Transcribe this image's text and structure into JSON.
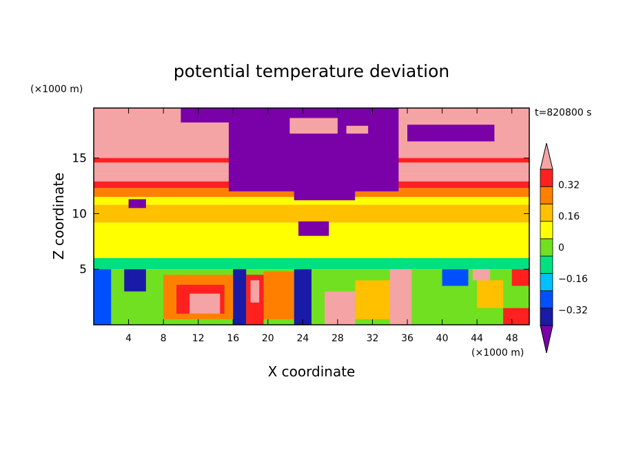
{
  "chart_data": {
    "type": "heatmap",
    "title": "potential temperature deviation",
    "xlabel": "X coordinate",
    "ylabel": "Z coordinate",
    "x_unit": "(×1000 m)",
    "y_unit": "(×1000 m)",
    "time_label": "t=820800 s",
    "xlim": [
      0,
      50
    ],
    "ylim": [
      0,
      19.5
    ],
    "x_ticks": [
      "4",
      "8",
      "12",
      "16",
      "20",
      "24",
      "28",
      "32",
      "36",
      "40",
      "44",
      "48"
    ],
    "x_tick_values": [
      4,
      8,
      12,
      16,
      20,
      24,
      28,
      32,
      36,
      40,
      44,
      48
    ],
    "y_ticks": [
      "5",
      "10",
      "15"
    ],
    "y_tick_values": [
      5,
      10,
      15
    ],
    "colorbar": {
      "levels": [
        -0.4,
        -0.32,
        -0.24,
        -0.16,
        -0.08,
        0,
        0.08,
        0.16,
        0.24,
        0.32,
        0.4
      ],
      "labels": [
        "0.32",
        "0.16",
        "0",
        "−0.16",
        "−0.32"
      ],
      "label_values": [
        0.32,
        0.16,
        0,
        -0.16,
        -0.32
      ],
      "colors": [
        "#7a00a8",
        "#1a1aa8",
        "#0050ff",
        "#00c0ff",
        "#00e080",
        "#70e020",
        "#ffff00",
        "#ffc000",
        "#ff8000",
        "#ff2020",
        "#f4a4a4"
      ]
    },
    "regions": [
      {
        "level": 0.02,
        "x0": 0,
        "x1": 50,
        "y0": 5,
        "y1": 9.2
      },
      {
        "level": 0.1,
        "x0": 0,
        "x1": 50,
        "y0": 9.2,
        "y1": 10.8
      },
      {
        "level": 0.05,
        "x0": 0,
        "x1": 50,
        "y0": 8.2,
        "y1": 8.8
      },
      {
        "level": 0.06,
        "x0": 0,
        "x1": 50,
        "y0": 10.8,
        "y1": 11.5
      },
      {
        "level": 0.18,
        "x0": 0,
        "x1": 50,
        "y0": 11.5,
        "y1": 12.3
      },
      {
        "level": 0.24,
        "x0": 0,
        "x1": 50,
        "y0": 12.3,
        "y1": 12.9
      },
      {
        "level": 0.32,
        "x0": 0,
        "x1": 50,
        "y0": 12.9,
        "y1": 13.6
      },
      {
        "level": 0.44,
        "x0": 0,
        "x1": 50,
        "y0": 13.6,
        "y1": 19.5
      },
      {
        "level": 0.28,
        "x0": 0,
        "x1": 50,
        "y0": 14.6,
        "y1": 15.0
      },
      {
        "level": -0.44,
        "x0": 15.5,
        "x1": 35,
        "y0": 12.0,
        "y1": 19.5
      },
      {
        "level": -0.44,
        "x0": 23,
        "x1": 30,
        "y0": 11.2,
        "y1": 12.5
      },
      {
        "level": -0.44,
        "x0": 10,
        "x1": 16,
        "y0": 18.2,
        "y1": 19.5
      },
      {
        "level": -0.44,
        "x0": 36,
        "x1": 46,
        "y0": 16.5,
        "y1": 18.0
      },
      {
        "level": -0.44,
        "x0": 4,
        "x1": 6,
        "y0": 10.5,
        "y1": 11.3
      },
      {
        "level": -0.44,
        "x0": 23.5,
        "x1": 27,
        "y0": 8.0,
        "y1": 9.3
      },
      {
        "level": 0.44,
        "x0": 22.5,
        "x1": 28,
        "y0": 17.2,
        "y1": 18.6
      },
      {
        "level": 0.44,
        "x0": 29,
        "x1": 31.5,
        "y0": 17.2,
        "y1": 17.9
      },
      {
        "level": -0.1,
        "x0": 0,
        "x1": 50,
        "y0": 5.0,
        "y1": 6.0
      },
      {
        "level": -0.02,
        "x0": 0,
        "x1": 50,
        "y0": 0,
        "y1": 5.0
      },
      {
        "level": -0.3,
        "x0": 0,
        "x1": 2,
        "y0": 0,
        "y1": 5.0
      },
      {
        "level": -0.36,
        "x0": 3.5,
        "x1": 6,
        "y0": 3.0,
        "y1": 5.0
      },
      {
        "level": 0.2,
        "x0": 8,
        "x1": 16,
        "y0": 0.5,
        "y1": 4.5
      },
      {
        "level": 0.3,
        "x0": 9.5,
        "x1": 15,
        "y0": 1.0,
        "y1": 3.6
      },
      {
        "level": 0.44,
        "x0": 11,
        "x1": 14.5,
        "y0": 1.0,
        "y1": 2.8
      },
      {
        "level": -0.38,
        "x0": 16,
        "x1": 17.5,
        "y0": 0,
        "y1": 5.0
      },
      {
        "level": 0.3,
        "x0": 17.5,
        "x1": 19.5,
        "y0": 0,
        "y1": 4.5
      },
      {
        "level": 0.44,
        "x0": 18,
        "x1": 19,
        "y0": 2.0,
        "y1": 4.0
      },
      {
        "level": 0.2,
        "x0": 19.5,
        "x1": 23,
        "y0": 0.5,
        "y1": 4.8
      },
      {
        "level": -0.38,
        "x0": 23,
        "x1": 25,
        "y0": 0,
        "y1": 5.0
      },
      {
        "level": 0.34,
        "x0": 26.5,
        "x1": 30,
        "y0": 0,
        "y1": 3.0
      },
      {
        "level": 0.1,
        "x0": 30,
        "x1": 34,
        "y0": 0.5,
        "y1": 4.0
      },
      {
        "level": 0.32,
        "x0": 34,
        "x1": 36.5,
        "y0": 0,
        "y1": 5.0
      },
      {
        "level": 0.44,
        "x0": 35,
        "x1": 35.8,
        "y0": 0.5,
        "y1": 3.5
      },
      {
        "level": -0.3,
        "x0": 40,
        "x1": 43,
        "y0": 3.5,
        "y1": 5.0
      },
      {
        "level": 0.12,
        "x0": 44,
        "x1": 47,
        "y0": 1.5,
        "y1": 4.0
      },
      {
        "level": 0.3,
        "x0": 47,
        "x1": 50,
        "y0": 0,
        "y1": 1.5
      },
      {
        "level": 0.3,
        "x0": 48,
        "x1": 50,
        "y0": 3.5,
        "y1": 5.0
      },
      {
        "level": 0.44,
        "x0": 43.5,
        "x1": 45.5,
        "y0": 4.0,
        "y1": 5.0
      }
    ]
  }
}
